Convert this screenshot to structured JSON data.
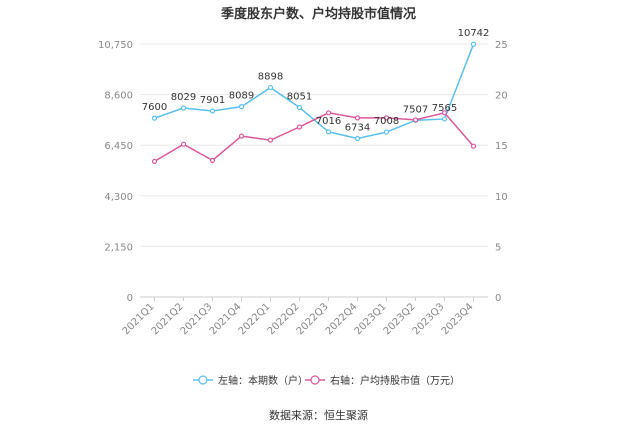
{
  "chart_data": {
    "type": "line",
    "title": "季度股东户数、户均持股市值情况",
    "source_label": "数据来源：恒生聚源",
    "categories": [
      "2021Q1",
      "2021Q2",
      "2021Q3",
      "2021Q4",
      "2022Q1",
      "2022Q2",
      "2022Q3",
      "2022Q4",
      "2023Q1",
      "2023Q2",
      "2023Q3",
      "2023Q4"
    ],
    "left_axis": {
      "ticks": [
        "0",
        "2,150",
        "4,300",
        "6,450",
        "8,600",
        "10,750"
      ],
      "ylim": [
        0,
        10750
      ]
    },
    "right_axis": {
      "ticks": [
        "0",
        "5",
        "10",
        "15",
        "20",
        "25"
      ],
      "ylim": [
        0,
        25
      ]
    },
    "series": [
      {
        "name": "左轴：本期数（户）",
        "axis": "left",
        "color": "#5bc0eb",
        "values": [
          7600,
          8029,
          7901,
          8089,
          8898,
          8051,
          7016,
          6734,
          7008,
          7507,
          7565,
          10742
        ],
        "labels": [
          "7600",
          "8029",
          "7901",
          "8089",
          "8898",
          "8051",
          "7016",
          "6734",
          "7008",
          "7507",
          "7565",
          "10742"
        ]
      },
      {
        "name": "右轴：户均持股市值（万元）",
        "axis": "right",
        "color": "#d9579b",
        "values": [
          13.4,
          15.1,
          13.5,
          15.9,
          15.5,
          16.8,
          18.2,
          17.7,
          17.7,
          17.5,
          18.2,
          14.9
        ]
      }
    ],
    "grid": true,
    "legend_position": "bottom-center"
  }
}
